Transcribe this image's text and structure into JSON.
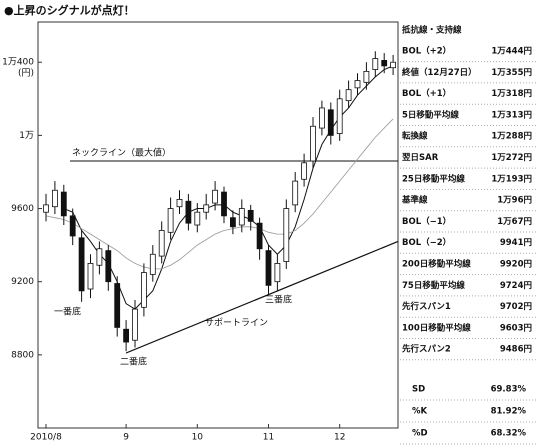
{
  "chart_data": {
    "type": "candlestick",
    "title": "●上昇のシグナルが点灯！",
    "y_unit": "(円)",
    "categories": [
      "2010/8",
      null,
      null,
      null,
      null,
      null,
      null,
      null,
      null,
      "9",
      null,
      null,
      null,
      null,
      null,
      null,
      null,
      "10",
      null,
      null,
      null,
      null,
      null,
      null,
      null,
      "11",
      null,
      null,
      null,
      null,
      null,
      null,
      null,
      "12",
      null,
      null,
      null,
      null,
      null,
      null
    ],
    "open": [
      9580,
      9610,
      9690,
      9560,
      9440,
      9160,
      9290,
      9370,
      9190,
      8940,
      8880,
      9060,
      9240,
      9340,
      9470,
      9610,
      9640,
      9510,
      9580,
      9630,
      9690,
      9550,
      9510,
      9590,
      9520,
      9370,
      9200,
      9310,
      9620,
      9760,
      9860,
      10040,
      10140,
      10010,
      10190,
      10260,
      10290,
      10360,
      10410,
      10370
    ],
    "high": [
      9680,
      9750,
      9730,
      9600,
      9480,
      9350,
      9420,
      9400,
      9230,
      8990,
      9100,
      9300,
      9400,
      9530,
      9660,
      9700,
      9680,
      9630,
      9680,
      9750,
      9720,
      9590,
      9650,
      9620,
      9550,
      9400,
      9350,
      9650,
      9800,
      9900,
      10100,
      10190,
      10180,
      10250,
      10300,
      10340,
      10400,
      10460,
      10450,
      10440
    ],
    "low": [
      9530,
      9570,
      9510,
      9400,
      9090,
      9110,
      9240,
      9150,
      8900,
      8820,
      8840,
      9010,
      9200,
      9300,
      9430,
      9570,
      9480,
      9470,
      9540,
      9590,
      9520,
      9460,
      9470,
      9480,
      9320,
      9130,
      9150,
      9270,
      9580,
      9720,
      9820,
      10000,
      9950,
      9970,
      10150,
      10220,
      10250,
      10320,
      10340,
      10330
    ],
    "close": [
      9620,
      9700,
      9560,
      9450,
      9150,
      9300,
      9380,
      9200,
      8950,
      8870,
      9050,
      9250,
      9350,
      9480,
      9600,
      9650,
      9520,
      9580,
      9620,
      9700,
      9560,
      9500,
      9600,
      9530,
      9380,
      9180,
      9300,
      9600,
      9750,
      9850,
      10050,
      10150,
      10000,
      10200,
      10250,
      10300,
      10350,
      10420,
      10380,
      10400
    ],
    "lines": [
      {
        "color": "#111111",
        "values": [
          null,
          null,
          9600,
          9580,
          9480,
          9420,
          9350,
          9300,
          9200,
          9080,
          9050,
          9100,
          9150,
          9270,
          9420,
          9520,
          9580,
          9600,
          9600,
          9620,
          9620,
          9580,
          9560,
          9540,
          9500,
          9400,
          9350,
          9400,
          9500,
          9650,
          9820,
          9950,
          10030,
          10100,
          10150,
          10220,
          10270,
          10320,
          10360,
          10380
        ]
      },
      {
        "color": "#999999",
        "values": [
          9560,
          9550,
          9540,
          9520,
          9490,
          9460,
          9430,
          9400,
          9370,
          9330,
          9300,
          9280,
          9270,
          9270,
          9290,
          9320,
          9360,
          9400,
          9430,
          9460,
          9480,
          9490,
          9500,
          9500,
          9490,
          9470,
          9460,
          9460,
          9480,
          9520,
          9570,
          9630,
          9690,
          9750,
          9810,
          9870,
          9930,
          9990,
          10040,
          10090
        ]
      }
    ],
    "ylim": [
      8400,
      10620
    ],
    "yticks": [
      {
        "value": 10400,
        "label": "1万400"
      },
      {
        "value": 10000,
        "label": "1万"
      },
      9600,
      9200,
      8800
    ],
    "neckline": {
      "label": "ネックライン（最大値）",
      "value": 9860
    },
    "support_line": {
      "label": "サポートライン",
      "values": [
        8810,
        9420
      ]
    },
    "annotations": [
      "一番底",
      "二番底",
      "三番底"
    ]
  },
  "table": {
    "title": "抵抗線・支持線",
    "rows": [
      [
        "BOL（+2）",
        "1万444円"
      ],
      [
        "終値（12月27日）",
        "1万355円"
      ],
      [
        "BOL（+1）",
        "1万318円"
      ],
      [
        "5日移動平均線",
        "1万313円"
      ],
      [
        "転換線",
        "1万288円"
      ],
      [
        "翌日SAR",
        "1万272円"
      ],
      [
        "25日移動平均線",
        "1万193円"
      ],
      [
        "基準線",
        "1万96円"
      ],
      [
        "BOL（−1）",
        "1万67円"
      ],
      [
        "BOL（−2）",
        "9941円"
      ],
      [
        "200日移動平均線",
        "9920円"
      ],
      [
        "75日移動平均線",
        "9724円"
      ],
      [
        "先行スパン1",
        "9702円"
      ],
      [
        "100日移動平均線",
        "9603円"
      ],
      [
        "先行スパン2",
        "9486円"
      ]
    ],
    "stats": [
      [
        "SD",
        "69.83%"
      ],
      [
        "%K",
        "81.92%"
      ],
      [
        "%D",
        "68.32%"
      ]
    ]
  }
}
